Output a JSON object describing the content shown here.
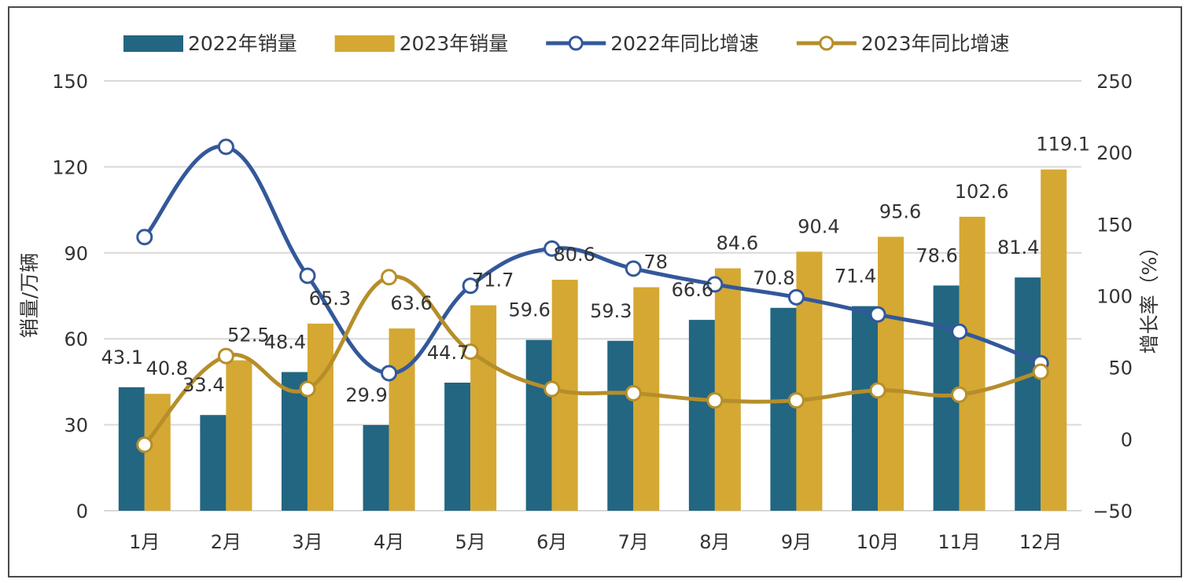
{
  "chart_data": {
    "type": "bar",
    "categories": [
      "1月",
      "2月",
      "3月",
      "4月",
      "5月",
      "6月",
      "7月",
      "8月",
      "9月",
      "10月",
      "11月",
      "12月"
    ],
    "series": [
      {
        "name": "2022年销量",
        "kind": "bar",
        "axis": "left",
        "color": "#226682",
        "values": [
          43.1,
          33.4,
          48.4,
          29.9,
          44.7,
          59.6,
          59.3,
          66.6,
          70.8,
          71.4,
          78.6,
          81.4
        ]
      },
      {
        "name": "2023年销量",
        "kind": "bar",
        "axis": "left",
        "color": "#D4A832",
        "values": [
          40.8,
          52.5,
          65.3,
          63.6,
          71.7,
          80.6,
          78,
          84.6,
          90.4,
          95.6,
          102.6,
          119.1
        ]
      },
      {
        "name": "2022年同比增速",
        "kind": "line",
        "axis": "right",
        "color": "#33589A",
        "values": [
          141,
          204,
          114,
          46,
          107,
          133,
          119,
          108,
          99,
          87,
          75,
          53
        ]
      },
      {
        "name": "2023年同比增速",
        "kind": "line",
        "axis": "right",
        "color": "#B68E2A",
        "values": [
          -4,
          58,
          35,
          113,
          61,
          35,
          32,
          27,
          27,
          34,
          31,
          47
        ]
      }
    ],
    "y_left": {
      "label": "销量/万辆",
      "range": [
        0,
        150
      ],
      "ticks": [
        0,
        30,
        60,
        90,
        120,
        150
      ]
    },
    "y_right": {
      "label": "增长率（%）",
      "range": [
        -50,
        250
      ],
      "ticks": [
        -50,
        0,
        50,
        100,
        150,
        200,
        250
      ]
    },
    "grid": true,
    "legend": "top"
  }
}
